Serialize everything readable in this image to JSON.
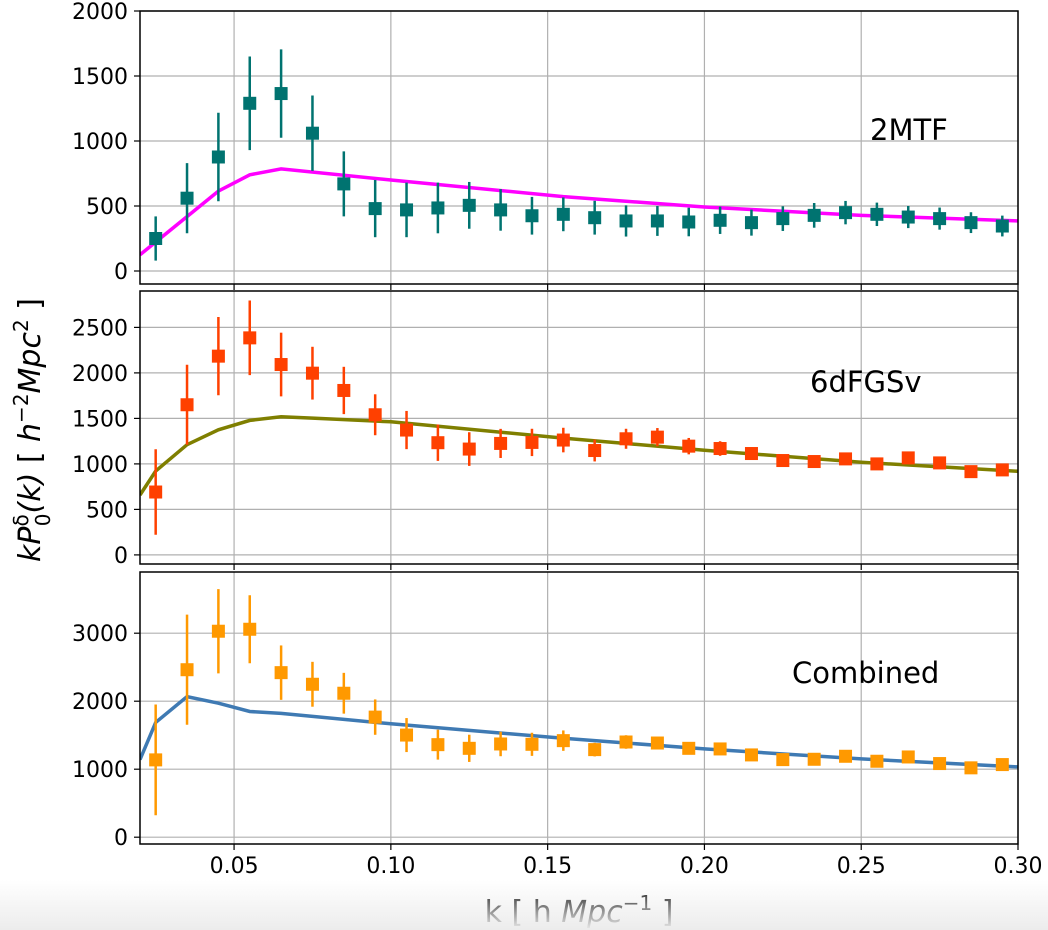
{
  "chart_data": {
    "type": "scatter",
    "shared_x": {
      "label_parts": [
        {
          "text": "k  [ h ",
          "style": "normal"
        },
        {
          "text": "Mpc",
          "style": "italic"
        },
        {
          "text": "−1",
          "style": "sup"
        },
        {
          "text": " ]",
          "style": "normal"
        }
      ],
      "xlim": [
        0.02,
        0.3
      ],
      "ticks": [
        0.05,
        0.1,
        0.15,
        0.2,
        0.25,
        0.3
      ],
      "tick_labels": [
        "0.05",
        "0.10",
        "0.15",
        "0.20",
        "0.25",
        "0.30"
      ]
    },
    "shared_y_label_parts": [
      {
        "text": "kP",
        "style": "italic"
      },
      {
        "text": "δ",
        "style": "sup"
      },
      {
        "text": "0",
        "style": "sub"
      },
      {
        "text": "(k)",
        "style": "italic"
      },
      {
        "text": "  [ ",
        "style": "normal"
      },
      {
        "text": "h",
        "style": "italic"
      },
      {
        "text": "−2",
        "style": "sup"
      },
      {
        "text": "Mpc",
        "style": "italic"
      },
      {
        "text": "2",
        "style": "sup"
      },
      {
        "text": " ]",
        "style": "normal"
      }
    ],
    "grid": true,
    "k": [
      0.025,
      0.035,
      0.045,
      0.055,
      0.065,
      0.075,
      0.085,
      0.095,
      0.105,
      0.115,
      0.125,
      0.135,
      0.145,
      0.155,
      0.165,
      0.175,
      0.185,
      0.195,
      0.205,
      0.215,
      0.225,
      0.235,
      0.245,
      0.255,
      0.265,
      0.275,
      0.285,
      0.295
    ],
    "panels": [
      {
        "label": "2MTF",
        "ylim": [
          -100,
          2000
        ],
        "yticks": [
          0,
          500,
          1000,
          1500,
          2000
        ],
        "ytick_labels": [
          "0",
          "500",
          "1000",
          "1500",
          "2000"
        ],
        "point_color": "#007370",
        "model_color": "#ff00ff",
        "values": [
          250,
          560,
          877,
          1290,
          1365,
          1060,
          670,
          480,
          470,
          485,
          505,
          470,
          425,
          436,
          410,
          385,
          385,
          377,
          390,
          372,
          403,
          428,
          449,
          436,
          415,
          403,
          372,
          346
        ],
        "errors": [
          170,
          270,
          340,
          360,
          340,
          290,
          250,
          220,
          210,
          195,
          180,
          160,
          145,
          130,
          130,
          120,
          115,
          110,
          105,
          100,
          95,
          95,
          90,
          90,
          85,
          85,
          80,
          80
        ],
        "model_k": [
          0.02,
          0.045,
          0.055,
          0.065,
          0.1,
          0.155,
          0.2,
          0.25,
          0.3
        ],
        "model": [
          125,
          615,
          740,
          785,
          700,
          572,
          492,
          428,
          385
        ]
      },
      {
        "label": "6dFGSv",
        "ylim": [
          -100,
          2900
        ],
        "yticks": [
          0,
          500,
          1000,
          1500,
          2000,
          2500
        ],
        "ytick_labels": [
          "0",
          "500",
          "1000",
          "1500",
          "2000",
          "2500"
        ],
        "point_color": "#ff4000",
        "model_color": "#7f7f00",
        "values": [
          691,
          1650,
          2184,
          2385,
          2092,
          1997,
          1807,
          1540,
          1372,
          1233,
          1163,
          1225,
          1236,
          1262,
          1147,
          1276,
          1294,
          1195,
          1169,
          1114,
          1037,
          1026,
          1055,
          1000,
          1066,
          1011,
          915,
          934
        ],
        "errors": [
          470,
          440,
          430,
          410,
          350,
          290,
          260,
          225,
          210,
          200,
          185,
          160,
          150,
          135,
          120,
          110,
          100,
          90,
          80,
          70,
          60,
          60,
          50,
          50,
          40,
          40,
          30,
          30
        ],
        "model_k": [
          0.02,
          0.025,
          0.035,
          0.045,
          0.055,
          0.065,
          0.075,
          0.1,
          0.155,
          0.2,
          0.25,
          0.3
        ],
        "model": [
          658,
          922,
          1211,
          1375,
          1478,
          1518,
          1503,
          1463,
          1283,
          1151,
          1018,
          919
        ]
      },
      {
        "label": "Combined",
        "ylim": [
          -100,
          3900
        ],
        "yticks": [
          0,
          1000,
          2000,
          3000
        ],
        "ytick_labels": [
          "0",
          "1000",
          "2000",
          "3000"
        ],
        "point_color": "#ff9900",
        "model_color": "#3f7ab3",
        "values": [
          1137,
          2463,
          3029,
          3058,
          2420,
          2249,
          2117,
          1766,
          1502,
          1361,
          1307,
          1371,
          1366,
          1420,
          1288,
          1400,
          1385,
          1307,
          1298,
          1210,
          1141,
          1146,
          1190,
          1117,
          1180,
          1083,
          1020,
          1068
        ],
        "errors": [
          815,
          810,
          620,
          500,
          400,
          330,
          300,
          260,
          250,
          220,
          200,
          180,
          170,
          150,
          100,
          100,
          90,
          80,
          70,
          60,
          50,
          40,
          40,
          30,
          30,
          30,
          30,
          30
        ],
        "model_k": [
          0.02,
          0.025,
          0.035,
          0.045,
          0.055,
          0.065,
          0.1,
          0.155,
          0.2,
          0.25,
          0.3
        ],
        "model": [
          1141,
          1688,
          2068,
          1970,
          1849,
          1820,
          1668,
          1454,
          1298,
          1151,
          1034
        ]
      }
    ]
  }
}
